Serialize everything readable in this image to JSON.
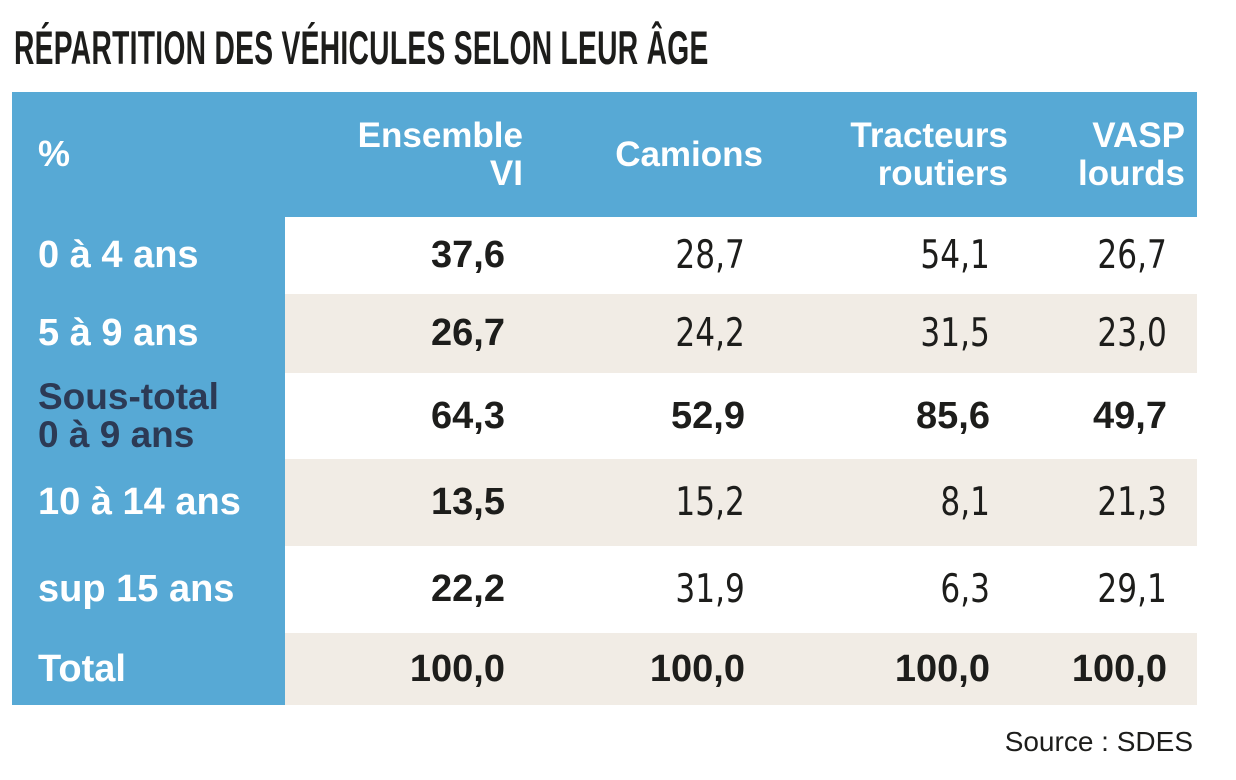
{
  "title": "RÉPARTITION DES VÉHICULES SELON LEUR ÂGE",
  "source_note": "Source : SDES",
  "colors": {
    "header_bg": "#57A9D5",
    "alt_row_bg": "#F1ECE5",
    "subtotal_label_color": "#2C3A55",
    "text_color": "#1D1D1B",
    "header_text_color": "#FFFFFF"
  },
  "table": {
    "header": {
      "percent": "%",
      "cols": [
        {
          "line1": "Ensemble",
          "line2": "VI"
        },
        {
          "line1": "Camions",
          "line2": ""
        },
        {
          "line1": "Tracteurs",
          "line2": "routiers"
        },
        {
          "line1": "VASP",
          "line2": "lourds"
        }
      ]
    },
    "rows": [
      {
        "label": "0 à 4 ans",
        "label2": "",
        "values": [
          "37,6",
          "28,7",
          "54,1",
          "26,7"
        ]
      },
      {
        "label": "5 à 9 ans",
        "label2": "",
        "values": [
          "26,7",
          "24,2",
          "31,5",
          "23,0"
        ]
      },
      {
        "label": "Sous-total",
        "label2": "0 à 9 ans",
        "values": [
          "64,3",
          "52,9",
          "85,6",
          "49,7"
        ]
      },
      {
        "label": "10 à 14 ans",
        "label2": "",
        "values": [
          "13,5",
          "15,2",
          "8,1",
          "21,3"
        ]
      },
      {
        "label": "sup 15 ans",
        "label2": "",
        "values": [
          "22,2",
          "31,9",
          "6,3",
          "29,1"
        ]
      },
      {
        "label": "Total",
        "label2": "",
        "values": [
          "100,0",
          "100,0",
          "100,0",
          "100,0"
        ]
      }
    ]
  },
  "chart_data": {
    "type": "table",
    "title": "RÉPARTITION DES VÉHICULES SELON LEUR ÂGE",
    "unit": "%",
    "columns": [
      "Ensemble VI",
      "Camions",
      "Tracteurs routiers",
      "VASP lourds"
    ],
    "row_labels": [
      "0 à 4 ans",
      "5 à 9 ans",
      "Sous-total 0 à 9 ans",
      "10 à 14 ans",
      "sup 15 ans",
      "Total"
    ],
    "values": [
      [
        37.6,
        28.7,
        54.1,
        26.7
      ],
      [
        26.7,
        24.2,
        31.5,
        23.0
      ],
      [
        64.3,
        52.9,
        85.6,
        49.7
      ],
      [
        13.5,
        15.2,
        8.1,
        21.3
      ],
      [
        22.2,
        31.9,
        6.3,
        29.1
      ],
      [
        100.0,
        100.0,
        100.0,
        100.0
      ]
    ],
    "emphasized_rows": [
      "Sous-total 0 à 9 ans",
      "Total"
    ],
    "emphasized_column": "Ensemble VI",
    "source": "Source : SDES"
  }
}
